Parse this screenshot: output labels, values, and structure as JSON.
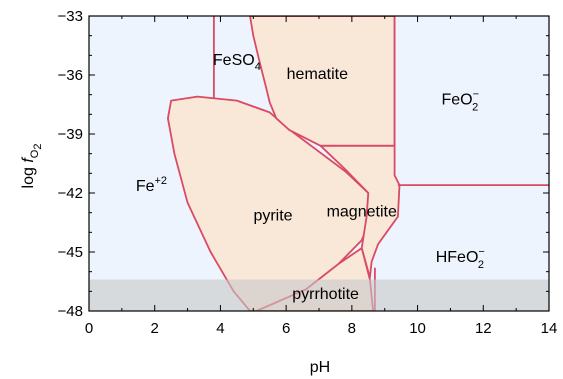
{
  "chart_data": {
    "type": "area",
    "xlabel": "pH",
    "ylabel_main": "log ",
    "ylabel_var": "f",
    "ylabel_sub": "O",
    "ylabel_sub2": "2",
    "xlim": [
      0,
      14
    ],
    "ylim": [
      -48,
      -33
    ],
    "xticks": [
      0,
      2,
      4,
      6,
      8,
      10,
      12,
      14
    ],
    "yticks": [
      -33,
      -36,
      -39,
      -42,
      -45,
      -48
    ],
    "ytick_labels": [
      "−33",
      "−36",
      "−39",
      "−42",
      "−45",
      "−48"
    ],
    "colors": {
      "aqueous_fill": "#eef4fd",
      "mineral_fill": "#f9e7d7",
      "boundary": "#d94a64",
      "gray_band": "#dcdcdc"
    },
    "gray_band_y": [
      -48,
      -46.4
    ],
    "regions": [
      {
        "name": "pyrite",
        "kind": "mineral",
        "polygon": [
          [
            2.5,
            -37.3
          ],
          [
            3.3,
            -37.1
          ],
          [
            4.5,
            -37.3
          ],
          [
            5.5,
            -37.9
          ],
          [
            6.2,
            -38.9
          ],
          [
            7.0,
            -39.9
          ],
          [
            7.8,
            -40.9
          ],
          [
            8.5,
            -42.0
          ],
          [
            8.6,
            -43.2
          ],
          [
            8.3,
            -44.4
          ],
          [
            7.6,
            -45.6
          ],
          [
            6.6,
            -46.9
          ],
          [
            5.1,
            -48
          ],
          [
            4.9,
            -48
          ],
          [
            4.4,
            -47.0
          ],
          [
            3.7,
            -45.0
          ],
          [
            3.0,
            -42.5
          ],
          [
            2.6,
            -40.0
          ],
          [
            2.4,
            -38.2
          ]
        ]
      },
      {
        "name": "hematite",
        "kind": "mineral",
        "polygon": [
          [
            4.9,
            -33
          ],
          [
            9.3,
            -33
          ],
          [
            9.3,
            -39.6
          ],
          [
            7.05,
            -39.6
          ],
          [
            6.1,
            -38.8
          ],
          [
            5.7,
            -38.2
          ],
          [
            5.5,
            -37.4
          ],
          [
            5.4,
            -36.7
          ],
          [
            5.2,
            -35.4
          ],
          [
            5.0,
            -34.0
          ]
        ]
      },
      {
        "name": "magnetite",
        "kind": "mineral",
        "polygon": [
          [
            7.05,
            -39.6
          ],
          [
            9.3,
            -39.6
          ],
          [
            9.3,
            -41.1
          ],
          [
            9.45,
            -41.6
          ],
          [
            9.4,
            -43.2
          ],
          [
            8.8,
            -44.6
          ],
          [
            8.6,
            -45.5
          ],
          [
            8.55,
            -46.3
          ],
          [
            8.3,
            -44.8
          ],
          [
            8.45,
            -43.2
          ],
          [
            8.5,
            -42.0
          ],
          [
            7.8,
            -40.8
          ]
        ]
      },
      {
        "name": "pyrrhotite",
        "kind": "mineral",
        "polygon": [
          [
            5.1,
            -48
          ],
          [
            6.6,
            -46.9
          ],
          [
            7.6,
            -45.6
          ],
          [
            8.3,
            -44.8
          ],
          [
            8.55,
            -46.4
          ],
          [
            8.65,
            -48
          ]
        ]
      }
    ],
    "boundary_lines": [
      [
        [
          3.8,
          -37.15
        ],
        [
          3.8,
          -33
        ]
      ],
      [
        [
          9.3,
          -33
        ],
        [
          9.3,
          -39.6
        ]
      ],
      [
        [
          9.4,
          -41.6
        ],
        [
          14,
          -41.6
        ]
      ],
      [
        [
          8.7,
          -45.8
        ],
        [
          8.7,
          -48
        ]
      ]
    ],
    "labels": [
      {
        "id": "fe2",
        "main": "Fe",
        "sup": "+2",
        "sub": "",
        "x": 1.9,
        "y": -41.9
      },
      {
        "id": "feso4",
        "main": "FeSO",
        "sup": "",
        "sub": "4",
        "x": 4.5,
        "y": -35.5
      },
      {
        "id": "hematite",
        "main": "hematite",
        "sup": "",
        "sub": "",
        "x": 6.95,
        "y": -36.2
      },
      {
        "id": "feo2",
        "main": "FeO",
        "sup": "−",
        "sub": "2",
        "x": 11.3,
        "y": -37.5
      },
      {
        "id": "pyrite",
        "main": "pyrite",
        "sup": "",
        "sub": "",
        "x": 5.6,
        "y": -43.4
      },
      {
        "id": "magnetite",
        "main": "magnetite",
        "sup": "",
        "sub": "",
        "x": 8.3,
        "y": -43.2
      },
      {
        "id": "hfeo2",
        "main": "HFeO",
        "sup": "−",
        "sub": "2",
        "x": 11.3,
        "y": -45.5
      },
      {
        "id": "pyrrhotite",
        "main": "pyrrhotite",
        "sup": "",
        "sub": "",
        "x": 7.2,
        "y": -47.4
      }
    ]
  }
}
